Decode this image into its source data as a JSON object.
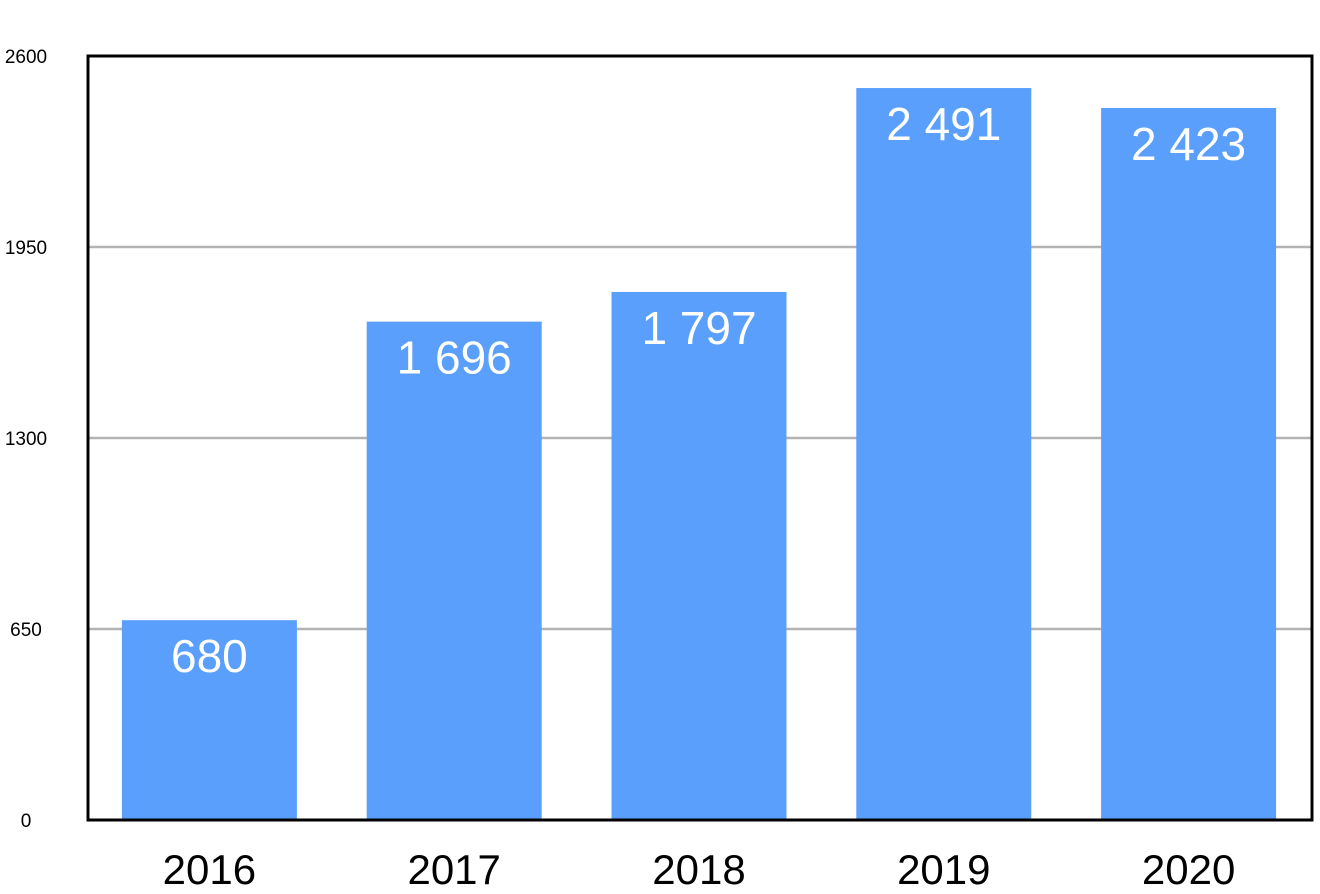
{
  "chart_data": {
    "type": "bar",
    "categories": [
      "2016",
      "2017",
      "2018",
      "2019",
      "2020"
    ],
    "values": [
      680,
      1696,
      1797,
      2491,
      2423
    ],
    "data_labels": [
      "680",
      "1 696",
      "1 797",
      "2 491",
      "2 423"
    ],
    "ylim": [
      0,
      2600
    ],
    "yticks": [
      0,
      650,
      1300,
      1950,
      2600
    ],
    "ytick_labels": [
      "0",
      "650",
      "1300",
      "1950",
      "2600"
    ],
    "grid": true,
    "legend": "none",
    "bar_color": "#5b9ffc",
    "grid_color": "#b3b3b3",
    "frame_color": "#000000"
  }
}
